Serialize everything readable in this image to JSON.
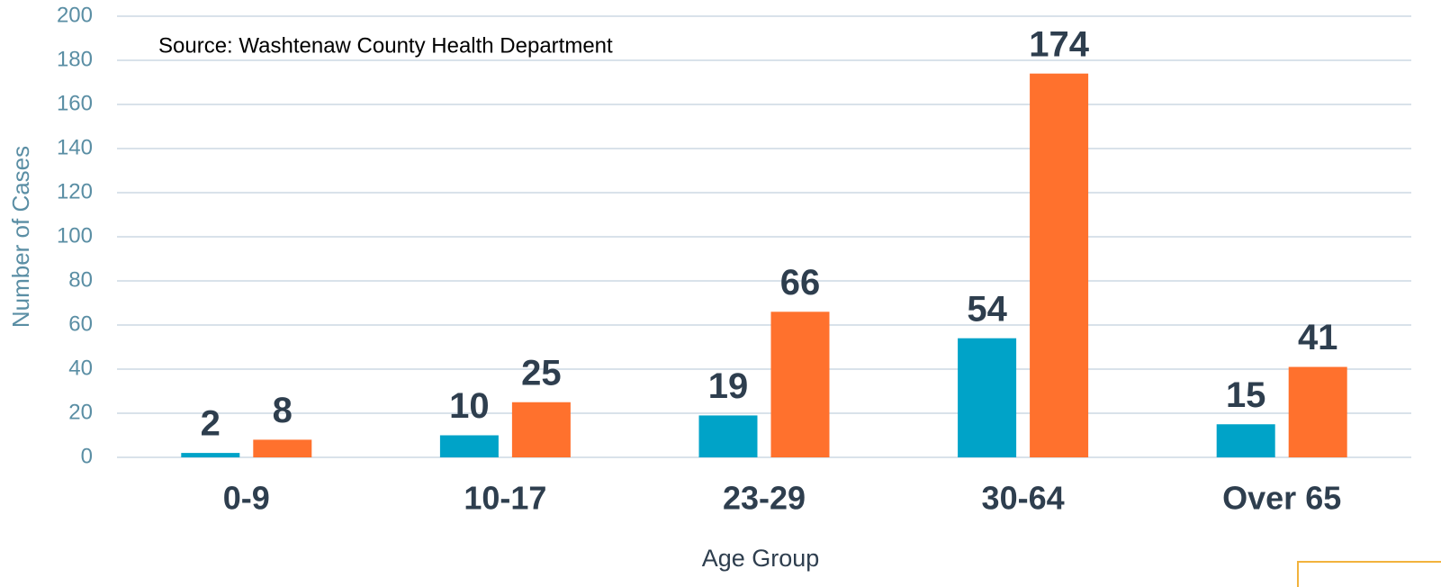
{
  "chart_data": {
    "type": "bar",
    "y_label": "Number of Cases",
    "x_label": "Age Group",
    "annotation": "Source: Washtenaw County Health Department",
    "categories": [
      "0-9",
      "10-17",
      "23-29",
      "30-64",
      "Over 65"
    ],
    "series": [
      {
        "color": "#00a3c8",
        "values": [
          2,
          10,
          19,
          54,
          15
        ]
      },
      {
        "color": "#ff712d",
        "values": [
          8,
          25,
          66,
          174,
          41
        ]
      }
    ],
    "ylim": [
      0,
      200
    ],
    "yticks": [
      0,
      20,
      40,
      60,
      80,
      100,
      120,
      140,
      160,
      180,
      200
    ],
    "grid": true
  }
}
